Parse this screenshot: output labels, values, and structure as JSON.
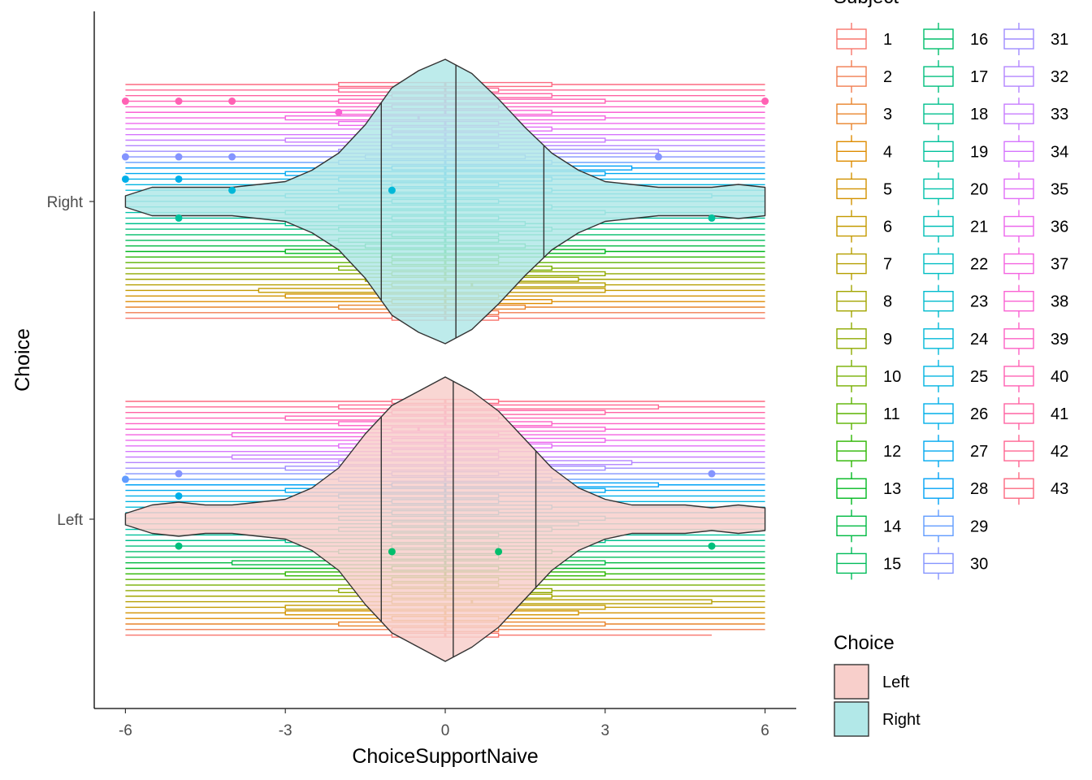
{
  "chart_data": {
    "type": "violin+boxplot",
    "xlabel": "ChoiceSupportNaive",
    "ylabel": "Choice",
    "x_ticks": [
      -6,
      -3,
      0,
      3,
      6
    ],
    "xlim": [
      -6.55,
      6.55
    ],
    "categories": [
      "Left",
      "Right"
    ],
    "grid": false,
    "violins": [
      {
        "name": "Left",
        "fill": "#f8cfcb",
        "median": 0.15,
        "q1": -1.2,
        "q3": 1.7,
        "density_profile": [
          [
            -6.0,
            0.02
          ],
          [
            -5.5,
            0.05
          ],
          [
            -5.0,
            0.06
          ],
          [
            -4.5,
            0.05
          ],
          [
            -4.0,
            0.05
          ],
          [
            -3.5,
            0.06
          ],
          [
            -3.0,
            0.07
          ],
          [
            -2.5,
            0.11
          ],
          [
            -2.0,
            0.18
          ],
          [
            -1.5,
            0.3
          ],
          [
            -1.0,
            0.4
          ],
          [
            -0.5,
            0.45
          ],
          [
            0.0,
            0.5
          ],
          [
            0.5,
            0.45
          ],
          [
            1.0,
            0.38
          ],
          [
            1.5,
            0.28
          ],
          [
            2.0,
            0.18
          ],
          [
            2.5,
            0.11
          ],
          [
            3.0,
            0.07
          ],
          [
            3.5,
            0.05
          ],
          [
            4.0,
            0.05
          ],
          [
            4.5,
            0.05
          ],
          [
            5.0,
            0.04
          ],
          [
            5.5,
            0.05
          ],
          [
            6.0,
            0.04
          ]
        ]
      },
      {
        "name": "Right",
        "fill": "#b2e8e8",
        "median": 0.2,
        "q1": -1.2,
        "q3": 1.85,
        "density_profile": [
          [
            -6.0,
            0.02
          ],
          [
            -5.5,
            0.05
          ],
          [
            -5.0,
            0.05
          ],
          [
            -4.5,
            0.05
          ],
          [
            -4.0,
            0.05
          ],
          [
            -3.5,
            0.06
          ],
          [
            -3.0,
            0.07
          ],
          [
            -2.5,
            0.11
          ],
          [
            -2.0,
            0.17
          ],
          [
            -1.5,
            0.27
          ],
          [
            -1.0,
            0.4
          ],
          [
            -0.5,
            0.46
          ],
          [
            0.0,
            0.5
          ],
          [
            0.5,
            0.45
          ],
          [
            1.0,
            0.36
          ],
          [
            1.5,
            0.26
          ],
          [
            2.0,
            0.17
          ],
          [
            2.5,
            0.11
          ],
          [
            3.0,
            0.07
          ],
          [
            3.5,
            0.06
          ],
          [
            4.0,
            0.05
          ],
          [
            4.5,
            0.05
          ],
          [
            5.0,
            0.05
          ],
          [
            5.5,
            0.06
          ],
          [
            6.0,
            0.05
          ]
        ]
      }
    ],
    "subjects": [
      "1",
      "2",
      "3",
      "4",
      "5",
      "6",
      "7",
      "8",
      "9",
      "10",
      "11",
      "12",
      "13",
      "14",
      "15",
      "16",
      "17",
      "18",
      "19",
      "20",
      "21",
      "22",
      "23",
      "24",
      "25",
      "26",
      "27",
      "28",
      "29",
      "30",
      "31",
      "32",
      "33",
      "34",
      "35",
      "36",
      "37",
      "38",
      "39",
      "40",
      "41",
      "42",
      "43"
    ],
    "subject_colors": [
      "#F8766D",
      "#F17D51",
      "#E9842C",
      "#DE8C00",
      "#D29200",
      "#C49A00",
      "#B59F00",
      "#A3A500",
      "#8FAA00",
      "#77AF00",
      "#5BB300",
      "#2CB600",
      "#00B81F",
      "#00BA42",
      "#00BC59",
      "#00BE6C",
      "#00BF7D",
      "#00C08E",
      "#00C19C",
      "#00C1AA",
      "#00BFB7",
      "#00BEC3",
      "#00BBCE",
      "#00B8D8",
      "#00B4E1",
      "#00AFE9",
      "#00A9F0",
      "#00A2F6",
      "#619CFF",
      "#8494FF",
      "#9F8CFF",
      "#B385FF",
      "#C77CFF",
      "#D575FE",
      "#E26EF7",
      "#ED68ED",
      "#F463E0",
      "#FA62D3",
      "#FD61C4",
      "#FF61B4",
      "#FF63A3",
      "#FF6692",
      "#FC6A81"
    ],
    "subject_boxes": {
      "Right": [
        [
          -6.0,
          -1.0,
          0.0,
          1.0,
          6.0
        ],
        [
          -6.0,
          -1.0,
          0.0,
          1.0,
          6.0
        ],
        [
          -6.0,
          -2.0,
          0.0,
          1.5,
          6.0
        ],
        [
          -6.0,
          -1.0,
          0.0,
          2.0,
          6.0
        ],
        [
          -6.0,
          -3.0,
          0.0,
          1.0,
          6.0
        ],
        [
          -6.0,
          -3.5,
          0.0,
          3.0,
          6.0
        ],
        [
          -6.0,
          -1.0,
          0.5,
          3.0,
          6.0
        ],
        [
          -6.0,
          -1.5,
          0.0,
          2.5,
          6.0
        ],
        [
          -6.0,
          -1.0,
          0.0,
          3.0,
          6.0
        ],
        [
          -6.0,
          -2.0,
          0.0,
          2.0,
          6.0
        ],
        [
          -6.0,
          -1.0,
          0.0,
          1.0,
          6.0
        ],
        [
          -6.0,
          -1.0,
          0.0,
          1.0,
          6.0
        ],
        [
          -6.0,
          -3.0,
          0.0,
          3.0,
          6.0
        ],
        [
          -6.0,
          -1.5,
          0.0,
          1.5,
          6.0
        ],
        [
          -6.0,
          -2.0,
          0.0,
          1.0,
          6.0
        ],
        [
          -6.0,
          -1.0,
          0.0,
          1.0,
          6.0
        ],
        [
          -6.0,
          -2.0,
          0.0,
          2.0,
          6.0
        ],
        [
          -6.0,
          -3.0,
          0.0,
          1.5,
          6.0
        ],
        [
          -6.0,
          -1.0,
          0.0,
          1.0,
          6.0
        ],
        [
          -6.0,
          -3.0,
          0.0,
          3.0,
          6.0
        ],
        [
          -6.0,
          -2.0,
          0.0,
          2.0,
          6.0
        ],
        [
          -6.0,
          -1.0,
          0.0,
          1.0,
          6.0
        ],
        [
          -6.0,
          -3.0,
          0.0,
          5.0,
          6.0
        ],
        [
          -6.0,
          -2.0,
          0.0,
          2.0,
          6.0
        ],
        [
          -6.0,
          -1.0,
          0.0,
          1.0,
          6.0
        ],
        [
          -6.0,
          -2.0,
          0.0,
          2.0,
          6.0
        ],
        [
          -6.0,
          -3.0,
          0.0,
          3.0,
          6.0
        ],
        [
          -6.0,
          -1.0,
          0.0,
          3.5,
          6.0
        ],
        [
          -6.0,
          -2.0,
          0.0,
          2.0,
          6.0
        ],
        [
          -6.0,
          -1.5,
          0.0,
          1.5,
          6.0
        ],
        [
          -6.0,
          -2.0,
          0.0,
          4.0,
          6.0
        ],
        [
          -6.0,
          -1.0,
          0.0,
          1.0,
          6.0
        ],
        [
          -6.0,
          -3.0,
          0.0,
          3.0,
          6.0
        ],
        [
          -6.0,
          -1.0,
          0.0,
          1.0,
          6.0
        ],
        [
          -6.0,
          -1.0,
          0.0,
          2.0,
          6.0
        ],
        [
          -6.0,
          -2.0,
          0.0,
          1.0,
          6.0
        ],
        [
          -6.0,
          -3.0,
          -0.5,
          3.0,
          6.0
        ],
        [
          -6.0,
          -2.0,
          0.0,
          2.0,
          6.0
        ],
        [
          -6.0,
          -1.0,
          0.0,
          1.0,
          6.0
        ],
        [
          -6.0,
          -2.0,
          0.0,
          3.0,
          6.0
        ],
        [
          -6.0,
          -1.0,
          0.0,
          2.0,
          6.0
        ],
        [
          -6.0,
          -2.0,
          0.0,
          1.0,
          6.0
        ],
        [
          -6.0,
          -2.0,
          0.0,
          2.0,
          6.0
        ]
      ],
      "Left": [
        [
          -6.0,
          -1.0,
          0.0,
          1.0,
          5.0
        ],
        [
          -6.0,
          -1.0,
          0.0,
          1.0,
          6.0
        ],
        [
          -6.0,
          -2.0,
          0.0,
          3.0,
          6.0
        ],
        [
          -6.0,
          -1.0,
          0.0,
          1.0,
          6.0
        ],
        [
          -6.0,
          -3.0,
          0.0,
          2.5,
          6.0
        ],
        [
          -6.0,
          -3.0,
          0.0,
          3.0,
          6.0
        ],
        [
          -6.0,
          -1.0,
          0.5,
          5.0,
          6.0
        ],
        [
          -6.0,
          -1.0,
          0.0,
          2.0,
          6.0
        ],
        [
          -6.0,
          -2.0,
          0.0,
          2.0,
          6.0
        ],
        [
          -6.0,
          -1.0,
          0.0,
          1.0,
          6.0
        ],
        [
          -6.0,
          -1.0,
          0.0,
          1.0,
          6.0
        ],
        [
          -6.0,
          -3.0,
          0.0,
          3.0,
          6.0
        ],
        [
          -6.0,
          -1.0,
          0.0,
          1.0,
          6.0
        ],
        [
          -6.0,
          -4.0,
          0.0,
          3.0,
          6.0
        ],
        [
          -6.0,
          -1.0,
          0.0,
          1.0,
          6.0
        ],
        [
          -6.0,
          -2.0,
          0.0,
          2.0,
          6.0
        ],
        [
          -6.0,
          -1.0,
          0.0,
          1.0,
          6.0
        ],
        [
          -6.0,
          -3.0,
          0.0,
          3.0,
          6.0
        ],
        [
          -6.0,
          -1.0,
          0.0,
          1.0,
          6.0
        ],
        [
          -6.0,
          -2.0,
          0.0,
          2.0,
          6.0
        ],
        [
          -6.0,
          -1.0,
          0.0,
          2.5,
          6.0
        ],
        [
          -6.0,
          -2.0,
          0.0,
          3.0,
          6.0
        ],
        [
          -6.0,
          -1.0,
          0.0,
          1.0,
          6.0
        ],
        [
          -6.0,
          -2.0,
          0.0,
          2.0,
          6.0
        ],
        [
          -6.0,
          -1.0,
          0.0,
          1.0,
          6.0
        ],
        [
          -6.0,
          -2.0,
          0.0,
          1.0,
          6.0
        ],
        [
          -6.0,
          -3.0,
          0.0,
          3.0,
          6.0
        ],
        [
          -6.0,
          -1.0,
          0.0,
          4.0,
          6.0
        ],
        [
          -6.0,
          -2.0,
          0.0,
          2.0,
          6.0
        ],
        [
          -6.0,
          -1.0,
          0.0,
          1.0,
          6.0
        ],
        [
          -6.0,
          -3.0,
          0.0,
          3.0,
          6.0
        ],
        [
          -6.0,
          -2.0,
          0.0,
          3.5,
          6.0
        ],
        [
          -6.0,
          -4.0,
          0.0,
          1.0,
          6.0
        ],
        [
          -6.0,
          -1.0,
          0.0,
          1.0,
          6.0
        ],
        [
          -6.0,
          -2.0,
          0.0,
          2.0,
          6.0
        ],
        [
          -6.0,
          -1.0,
          0.0,
          3.0,
          6.0
        ],
        [
          -6.0,
          -4.0,
          0.0,
          1.0,
          6.0
        ],
        [
          -6.0,
          -1.0,
          -0.5,
          3.0,
          6.0
        ],
        [
          -6.0,
          -2.0,
          0.0,
          2.0,
          6.0
        ],
        [
          -6.0,
          -3.0,
          0.0,
          1.0,
          6.0
        ],
        [
          -6.0,
          -1.0,
          0.0,
          3.0,
          6.0
        ],
        [
          -6.0,
          -2.0,
          0.0,
          4.0,
          6.0
        ],
        [
          -6.0,
          -1.0,
          0.0,
          1.0,
          6.0
        ]
      ]
    },
    "outliers": {
      "Right": [
        {
          "subject": "40",
          "x": -6
        },
        {
          "subject": "40",
          "x": -5
        },
        {
          "subject": "40",
          "x": -4
        },
        {
          "subject": "40",
          "x": 6
        },
        {
          "subject": "38",
          "x": -2
        },
        {
          "subject": "30",
          "x": -6
        },
        {
          "subject": "30",
          "x": -5
        },
        {
          "subject": "30",
          "x": -4
        },
        {
          "subject": "30",
          "x": 4
        },
        {
          "subject": "26",
          "x": -6
        },
        {
          "subject": "26",
          "x": -5
        },
        {
          "subject": "24",
          "x": -4
        },
        {
          "subject": "24",
          "x": -1
        },
        {
          "subject": "19",
          "x": -5
        },
        {
          "subject": "19",
          "x": 5
        }
      ],
      "Left": [
        {
          "subject": "29",
          "x": -6
        },
        {
          "subject": "30",
          "x": -5
        },
        {
          "subject": "30",
          "x": 5
        },
        {
          "subject": "26",
          "x": -5
        },
        {
          "subject": "17",
          "x": -5
        },
        {
          "subject": "17",
          "x": 5
        },
        {
          "subject": "16",
          "x": -1
        },
        {
          "subject": "16",
          "x": 1
        }
      ]
    },
    "legends": [
      {
        "title": "Subject",
        "entries": [
          "1",
          "2",
          "3",
          "4",
          "5",
          "6",
          "7",
          "8",
          "9",
          "10",
          "11",
          "12",
          "13",
          "14",
          "15",
          "16",
          "17",
          "18",
          "19",
          "20",
          "21",
          "22",
          "23",
          "24",
          "25",
          "26",
          "27",
          "28",
          "29",
          "30",
          "31",
          "32",
          "33",
          "34",
          "35",
          "36",
          "37",
          "38",
          "39",
          "40",
          "41",
          "42",
          "43"
        ]
      },
      {
        "title": "Choice",
        "entries": [
          "Left",
          "Right"
        ],
        "fills": [
          "#f8cfcb",
          "#b2e8e8"
        ]
      }
    ]
  }
}
